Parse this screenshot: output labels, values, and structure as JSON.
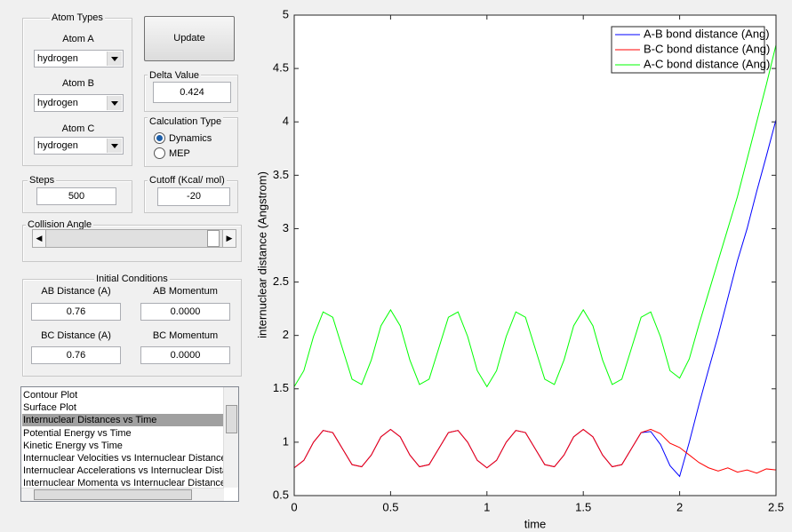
{
  "atom_types": {
    "title": "Atom Types",
    "atom_a_label": "Atom A",
    "atom_a": "hydrogen",
    "atom_b_label": "Atom B",
    "atom_b": "hydrogen",
    "atom_c_label": "Atom C",
    "atom_c": "hydrogen"
  },
  "update_button": "Update",
  "delta_value": {
    "label": "Delta Value",
    "value": "0.424"
  },
  "calculation_type": {
    "label": "Calculation Type",
    "options": [
      "Dynamics",
      "MEP"
    ],
    "selected": 0
  },
  "steps": {
    "label": "Steps",
    "value": "500"
  },
  "cutoff": {
    "label": "Cutoff (Kcal/ mol)",
    "value": "-20"
  },
  "collision_angle": {
    "label": "Collision Angle"
  },
  "initial_conditions": {
    "title": "Initial Conditions",
    "ab_distance_label": "AB Distance (A)",
    "ab_distance": "0.76",
    "ab_momentum_label": "AB Momentum",
    "ab_momentum": "0.0000",
    "bc_distance_label": "BC Distance (A)",
    "bc_distance": "0.76",
    "bc_momentum_label": "BC Momentum",
    "bc_momentum": "0.0000"
  },
  "plot_list": {
    "items": [
      "Contour Plot",
      "Surface Plot",
      "Internuclear Distances vs Time",
      "Potential Energy vs Time",
      "Kinetic Energy vs Time",
      "Internuclear Velocities vs Internuclear Distance",
      "Internuclear Accelerations vs Internuclear Dista",
      "Internuclear Momenta vs Internuclear Distance"
    ],
    "selected": 2
  },
  "chart_data": {
    "type": "line",
    "x_label": "time",
    "y_label": "internuclear distance (Angstrom)",
    "x": [
      0,
      0.05,
      0.1,
      0.15,
      0.2,
      0.25,
      0.3,
      0.35,
      0.4,
      0.45,
      0.5,
      0.55,
      0.6,
      0.65,
      0.7,
      0.75,
      0.8,
      0.85,
      0.9,
      0.95,
      1,
      1.05,
      1.1,
      1.15,
      1.2,
      1.25,
      1.3,
      1.35,
      1.4,
      1.45,
      1.5,
      1.55,
      1.6,
      1.65,
      1.7,
      1.75,
      1.8,
      1.85,
      1.9,
      1.95,
      2,
      2.05,
      2.1,
      2.15,
      2.2,
      2.25,
      2.3,
      2.35,
      2.4,
      2.45,
      2.5
    ],
    "series": [
      {
        "name": "A-B bond distance (Ang)",
        "color": "#0000ff",
        "values": [
          0.76,
          0.83,
          1.0,
          1.11,
          1.09,
          0.94,
          0.79,
          0.77,
          0.88,
          1.05,
          1.12,
          1.05,
          0.88,
          0.77,
          0.79,
          0.94,
          1.09,
          1.11,
          1.0,
          0.83,
          0.76,
          0.83,
          1.0,
          1.11,
          1.09,
          0.94,
          0.79,
          0.77,
          0.88,
          1.05,
          1.12,
          1.05,
          0.88,
          0.77,
          0.79,
          0.94,
          1.09,
          1.1,
          0.98,
          0.78,
          0.68,
          1.0,
          1.35,
          1.68,
          2.0,
          2.35,
          2.7,
          3.0,
          3.35,
          3.68,
          4.02
        ]
      },
      {
        "name": "B-C bond distance (Ang)",
        "color": "#ff0000",
        "values": [
          0.76,
          0.83,
          1.0,
          1.11,
          1.09,
          0.94,
          0.79,
          0.77,
          0.88,
          1.05,
          1.12,
          1.05,
          0.88,
          0.77,
          0.79,
          0.94,
          1.09,
          1.11,
          1.0,
          0.83,
          0.76,
          0.83,
          1.0,
          1.11,
          1.09,
          0.94,
          0.79,
          0.77,
          0.88,
          1.05,
          1.12,
          1.05,
          0.88,
          0.77,
          0.79,
          0.94,
          1.09,
          1.12,
          1.08,
          0.99,
          0.95,
          0.88,
          0.81,
          0.76,
          0.73,
          0.76,
          0.72,
          0.74,
          0.71,
          0.75,
          0.74
        ]
      },
      {
        "name": "A-C bond distance (Ang)",
        "color": "#00ff00",
        "values": [
          1.52,
          1.67,
          1.99,
          2.22,
          2.17,
          1.88,
          1.59,
          1.54,
          1.77,
          2.09,
          2.24,
          2.09,
          1.77,
          1.54,
          1.59,
          1.88,
          2.17,
          2.22,
          1.99,
          1.67,
          1.52,
          1.67,
          1.99,
          2.22,
          2.17,
          1.88,
          1.59,
          1.54,
          1.77,
          2.09,
          2.24,
          2.09,
          1.77,
          1.54,
          1.59,
          1.88,
          2.17,
          2.22,
          1.99,
          1.67,
          1.6,
          1.78,
          2.1,
          2.4,
          2.7,
          3.0,
          3.3,
          3.65,
          4.0,
          4.35,
          4.72
        ]
      }
    ],
    "xlim": [
      0,
      2.5
    ],
    "ylim": [
      0.5,
      5
    ],
    "xticks": [
      0,
      0.5,
      1,
      1.5,
      2,
      2.5
    ],
    "yticks": [
      0.5,
      1,
      1.5,
      2,
      2.5,
      3,
      3.5,
      4,
      4.5,
      5
    ],
    "grid": false,
    "legend": "top-right"
  }
}
